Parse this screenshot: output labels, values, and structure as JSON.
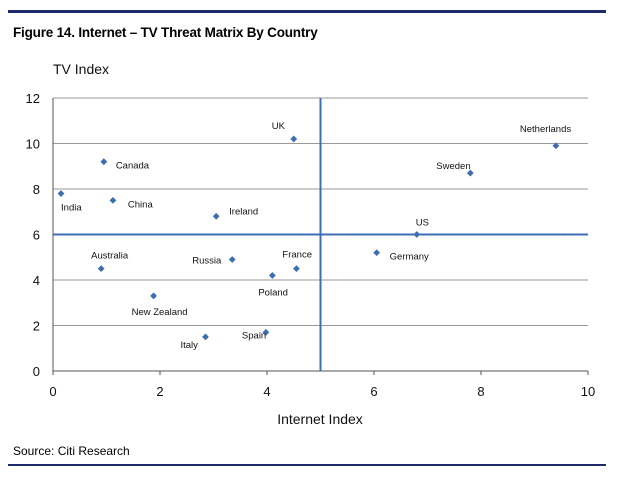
{
  "figure_title": "Figure 14. Internet – TV Threat Matrix By Country",
  "source": "Source: Citi Research",
  "colors": {
    "rule": "#1f2a6b",
    "marker": "#3d6eb3",
    "quadrant_line": "#3d6eb3",
    "grid": "#9a9a9a"
  },
  "chart_data": {
    "type": "scatter",
    "title": "",
    "xlabel": "Internet Index",
    "ylabel": "TV Index",
    "xlim": [
      0,
      10
    ],
    "ylim": [
      0,
      12
    ],
    "xticks": [
      "0",
      "2",
      "4",
      "6",
      "8",
      "10"
    ],
    "yticks": [
      "0",
      "2",
      "4",
      "6",
      "8",
      "10",
      "12"
    ],
    "grid": "horizontal",
    "quadrant_lines": {
      "x": 5,
      "y": 6
    },
    "points": [
      {
        "label": "India",
        "x": 0.15,
        "y": 7.8
      },
      {
        "label": "Canada",
        "x": 0.95,
        "y": 9.2
      },
      {
        "label": "China",
        "x": 1.12,
        "y": 7.5
      },
      {
        "label": "Australia",
        "x": 0.9,
        "y": 4.5
      },
      {
        "label": "New Zealand",
        "x": 1.88,
        "y": 3.3
      },
      {
        "label": "Italy",
        "x": 2.85,
        "y": 1.5
      },
      {
        "label": "Ireland",
        "x": 3.05,
        "y": 6.8
      },
      {
        "label": "Russia",
        "x": 3.35,
        "y": 4.9
      },
      {
        "label": "Spain",
        "x": 3.98,
        "y": 1.7
      },
      {
        "label": "Poland",
        "x": 4.1,
        "y": 4.2
      },
      {
        "label": "UK",
        "x": 4.5,
        "y": 10.2
      },
      {
        "label": "France",
        "x": 4.55,
        "y": 4.5
      },
      {
        "label": "Germany",
        "x": 6.05,
        "y": 5.2
      },
      {
        "label": "US",
        "x": 6.8,
        "y": 6.0
      },
      {
        "label": "Sweden",
        "x": 7.8,
        "y": 8.7
      },
      {
        "label": "Netherlands",
        "x": 9.4,
        "y": 9.9
      }
    ]
  }
}
